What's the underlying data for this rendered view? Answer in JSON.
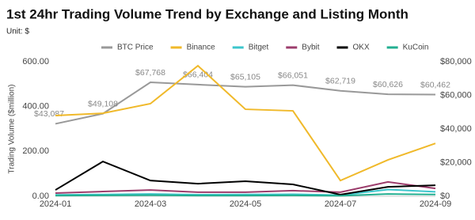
{
  "chart_data": {
    "type": "line",
    "title": "1st 24hr Trading Volume Trend by Exchange and Listing Month",
    "subtitle": "Unit: $",
    "y_label": "Trading Volume ($million)",
    "categories": [
      "2024-01",
      null,
      "2024-03",
      null,
      "2024-05",
      null,
      "2024-07",
      null,
      "2024-09"
    ],
    "ylim": [
      0,
      600
    ],
    "yticks": [
      {
        "value": 0,
        "label": "0.00"
      },
      {
        "value": 200,
        "label": "200.00"
      },
      {
        "value": 400,
        "label": "400.00"
      },
      {
        "value": 600,
        "label": "600.00"
      }
    ],
    "y2lim": [
      0,
      80000
    ],
    "y2ticks": [
      {
        "value": 0,
        "label": "$0"
      },
      {
        "value": 20000,
        "label": "$20,000"
      },
      {
        "value": 40000,
        "label": "$40,000"
      },
      {
        "value": 60000,
        "label": "$60,000"
      },
      {
        "value": 80000,
        "label": "$80,000"
      }
    ],
    "grid": false,
    "legend": "top",
    "series": [
      {
        "name": "BTC Price",
        "color": "#999999",
        "axis": "y2",
        "values": [
          43087,
          49108,
          67768,
          66404,
          65105,
          66051,
          62719,
          60626,
          60462
        ],
        "value_labels": [
          "$43,087",
          "$49,108",
          "$67,768",
          "$66,404",
          "$65,105",
          "$66,051",
          "$62,719",
          "$60,626",
          "$60,462"
        ]
      },
      {
        "name": "Binance",
        "color": "#f0b92a",
        "values": [
          360,
          370,
          413,
          582,
          388,
          381,
          70,
          162,
          236
        ]
      },
      {
        "name": "Bitget",
        "color": "#3cc6cc",
        "values": [
          6,
          8,
          10,
          7,
          8,
          9,
          5,
          30,
          20
        ]
      },
      {
        "name": "Bybit",
        "color": "#9c3d6c",
        "values": [
          14,
          21,
          28,
          18,
          18,
          25,
          18,
          64,
          35
        ]
      },
      {
        "name": "OKX",
        "color": "#000000",
        "values": [
          28,
          155,
          70,
          56,
          67,
          53,
          7,
          42,
          49
        ]
      },
      {
        "name": "KuCoin",
        "color": "#23af91",
        "values": [
          3,
          4,
          5,
          3,
          3,
          4,
          2,
          10,
          8
        ]
      }
    ]
  }
}
